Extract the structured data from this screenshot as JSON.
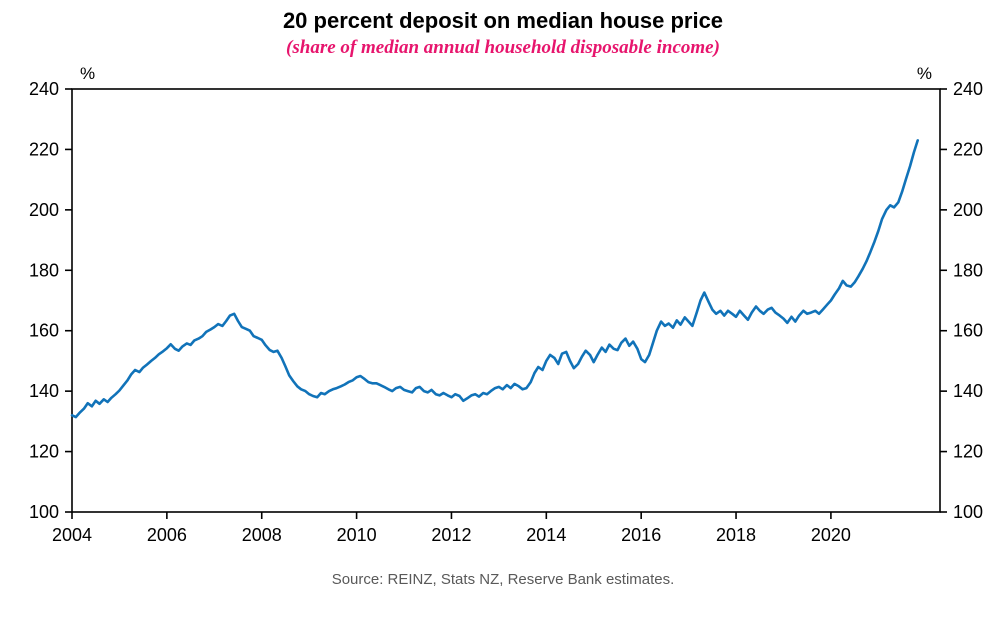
{
  "header": {
    "title": "20 percent deposit on median house price",
    "subtitle": "(share of median annual household disposable income)"
  },
  "footer": {
    "source": "Source: REINZ, Stats NZ, Reserve Bank estimates."
  },
  "chart_data": {
    "type": "line",
    "title": "20 percent deposit on median house price",
    "subtitle": "(share of median annual household disposable income)",
    "axis_unit": "%",
    "xlim": [
      2004,
      2022.3
    ],
    "ylim": [
      100,
      240
    ],
    "y_ticks": [
      100,
      120,
      140,
      160,
      180,
      200,
      220,
      240
    ],
    "x_ticks": [
      2004,
      2006,
      2008,
      2010,
      2012,
      2014,
      2016,
      2018,
      2020
    ],
    "grid": false,
    "legend_position": "none",
    "colors": {
      "line": "#1173b9",
      "subtitle": "#e7156d",
      "axis": "#000000",
      "source_text": "#595959"
    },
    "series": [
      {
        "name": "20 percent deposit as share of median annual household disposable income",
        "points": [
          [
            2004.0,
            132.0
          ],
          [
            2004.08,
            131.4
          ],
          [
            2004.17,
            133.0
          ],
          [
            2004.25,
            134.2
          ],
          [
            2004.33,
            136.0
          ],
          [
            2004.42,
            135.0
          ],
          [
            2004.5,
            136.8
          ],
          [
            2004.58,
            135.8
          ],
          [
            2004.67,
            137.3
          ],
          [
            2004.75,
            136.4
          ],
          [
            2004.83,
            137.8
          ],
          [
            2004.92,
            139.0
          ],
          [
            2005.0,
            140.2
          ],
          [
            2005.08,
            141.8
          ],
          [
            2005.17,
            143.6
          ],
          [
            2005.25,
            145.6
          ],
          [
            2005.33,
            147.0
          ],
          [
            2005.42,
            146.3
          ],
          [
            2005.5,
            147.8
          ],
          [
            2005.58,
            148.8
          ],
          [
            2005.67,
            150.0
          ],
          [
            2005.75,
            151.0
          ],
          [
            2005.83,
            152.2
          ],
          [
            2005.92,
            153.2
          ],
          [
            2006.0,
            154.2
          ],
          [
            2006.08,
            155.5
          ],
          [
            2006.17,
            154.0
          ],
          [
            2006.25,
            153.4
          ],
          [
            2006.33,
            154.8
          ],
          [
            2006.42,
            155.8
          ],
          [
            2006.5,
            155.3
          ],
          [
            2006.58,
            156.8
          ],
          [
            2006.67,
            157.4
          ],
          [
            2006.75,
            158.2
          ],
          [
            2006.83,
            159.6
          ],
          [
            2006.92,
            160.4
          ],
          [
            2007.0,
            161.2
          ],
          [
            2007.08,
            162.2
          ],
          [
            2007.17,
            161.6
          ],
          [
            2007.25,
            163.2
          ],
          [
            2007.33,
            165.0
          ],
          [
            2007.42,
            165.6
          ],
          [
            2007.5,
            163.2
          ],
          [
            2007.58,
            161.2
          ],
          [
            2007.67,
            160.6
          ],
          [
            2007.75,
            160.0
          ],
          [
            2007.83,
            158.2
          ],
          [
            2007.92,
            157.6
          ],
          [
            2008.0,
            157.0
          ],
          [
            2008.08,
            155.2
          ],
          [
            2008.17,
            153.6
          ],
          [
            2008.25,
            153.0
          ],
          [
            2008.33,
            153.4
          ],
          [
            2008.42,
            151.0
          ],
          [
            2008.5,
            148.2
          ],
          [
            2008.58,
            145.2
          ],
          [
            2008.67,
            143.2
          ],
          [
            2008.75,
            141.6
          ],
          [
            2008.83,
            140.6
          ],
          [
            2008.92,
            140.0
          ],
          [
            2009.0,
            139.0
          ],
          [
            2009.08,
            138.4
          ],
          [
            2009.17,
            138.0
          ],
          [
            2009.25,
            139.4
          ],
          [
            2009.33,
            139.0
          ],
          [
            2009.42,
            140.0
          ],
          [
            2009.5,
            140.6
          ],
          [
            2009.58,
            141.0
          ],
          [
            2009.67,
            141.6
          ],
          [
            2009.75,
            142.2
          ],
          [
            2009.83,
            143.0
          ],
          [
            2009.92,
            143.6
          ],
          [
            2010.0,
            144.6
          ],
          [
            2010.08,
            145.0
          ],
          [
            2010.17,
            144.0
          ],
          [
            2010.25,
            143.0
          ],
          [
            2010.33,
            142.6
          ],
          [
            2010.42,
            142.6
          ],
          [
            2010.5,
            142.0
          ],
          [
            2010.58,
            141.4
          ],
          [
            2010.67,
            140.6
          ],
          [
            2010.75,
            140.0
          ],
          [
            2010.83,
            141.0
          ],
          [
            2010.92,
            141.4
          ],
          [
            2011.0,
            140.4
          ],
          [
            2011.08,
            140.0
          ],
          [
            2011.17,
            139.6
          ],
          [
            2011.25,
            141.0
          ],
          [
            2011.33,
            141.4
          ],
          [
            2011.42,
            140.0
          ],
          [
            2011.5,
            139.6
          ],
          [
            2011.58,
            140.4
          ],
          [
            2011.67,
            139.0
          ],
          [
            2011.75,
            138.6
          ],
          [
            2011.83,
            139.4
          ],
          [
            2011.92,
            138.6
          ],
          [
            2012.0,
            138.0
          ],
          [
            2012.08,
            139.0
          ],
          [
            2012.17,
            138.4
          ],
          [
            2012.25,
            136.8
          ],
          [
            2012.33,
            137.6
          ],
          [
            2012.42,
            138.6
          ],
          [
            2012.5,
            139.0
          ],
          [
            2012.58,
            138.2
          ],
          [
            2012.67,
            139.4
          ],
          [
            2012.75,
            139.0
          ],
          [
            2012.83,
            140.0
          ],
          [
            2012.92,
            141.0
          ],
          [
            2013.0,
            141.4
          ],
          [
            2013.08,
            140.6
          ],
          [
            2013.17,
            142.0
          ],
          [
            2013.25,
            141.0
          ],
          [
            2013.33,
            142.4
          ],
          [
            2013.42,
            141.6
          ],
          [
            2013.5,
            140.6
          ],
          [
            2013.58,
            141.0
          ],
          [
            2013.67,
            143.0
          ],
          [
            2013.75,
            146.0
          ],
          [
            2013.83,
            148.0
          ],
          [
            2013.92,
            147.0
          ],
          [
            2014.0,
            150.0
          ],
          [
            2014.08,
            152.0
          ],
          [
            2014.17,
            151.0
          ],
          [
            2014.25,
            149.0
          ],
          [
            2014.33,
            152.4
          ],
          [
            2014.42,
            153.0
          ],
          [
            2014.5,
            150.0
          ],
          [
            2014.58,
            147.6
          ],
          [
            2014.67,
            149.0
          ],
          [
            2014.75,
            151.4
          ],
          [
            2014.83,
            153.4
          ],
          [
            2014.92,
            152.0
          ],
          [
            2015.0,
            149.6
          ],
          [
            2015.08,
            152.0
          ],
          [
            2015.17,
            154.4
          ],
          [
            2015.25,
            153.0
          ],
          [
            2015.33,
            155.4
          ],
          [
            2015.42,
            154.0
          ],
          [
            2015.5,
            153.6
          ],
          [
            2015.58,
            156.0
          ],
          [
            2015.67,
            157.4
          ],
          [
            2015.75,
            155.0
          ],
          [
            2015.83,
            156.4
          ],
          [
            2015.92,
            154.0
          ],
          [
            2016.0,
            150.6
          ],
          [
            2016.08,
            149.6
          ],
          [
            2016.17,
            152.0
          ],
          [
            2016.25,
            156.0
          ],
          [
            2016.33,
            160.0
          ],
          [
            2016.42,
            163.0
          ],
          [
            2016.5,
            161.6
          ],
          [
            2016.58,
            162.4
          ],
          [
            2016.67,
            161.0
          ],
          [
            2016.75,
            163.4
          ],
          [
            2016.83,
            162.0
          ],
          [
            2016.92,
            164.4
          ],
          [
            2017.0,
            163.0
          ],
          [
            2017.08,
            161.6
          ],
          [
            2017.17,
            166.0
          ],
          [
            2017.25,
            170.0
          ],
          [
            2017.33,
            172.6
          ],
          [
            2017.42,
            169.6
          ],
          [
            2017.5,
            167.0
          ],
          [
            2017.58,
            165.6
          ],
          [
            2017.67,
            166.6
          ],
          [
            2017.75,
            165.0
          ],
          [
            2017.83,
            166.6
          ],
          [
            2017.92,
            165.6
          ],
          [
            2018.0,
            164.6
          ],
          [
            2018.08,
            166.6
          ],
          [
            2018.17,
            165.0
          ],
          [
            2018.25,
            163.6
          ],
          [
            2018.33,
            166.0
          ],
          [
            2018.42,
            168.0
          ],
          [
            2018.5,
            166.6
          ],
          [
            2018.58,
            165.6
          ],
          [
            2018.67,
            167.0
          ],
          [
            2018.75,
            167.6
          ],
          [
            2018.83,
            166.0
          ],
          [
            2018.92,
            165.0
          ],
          [
            2019.0,
            164.0
          ],
          [
            2019.08,
            162.6
          ],
          [
            2019.17,
            164.6
          ],
          [
            2019.25,
            163.0
          ],
          [
            2019.33,
            165.0
          ],
          [
            2019.42,
            166.6
          ],
          [
            2019.5,
            165.6
          ],
          [
            2019.58,
            166.0
          ],
          [
            2019.67,
            166.6
          ],
          [
            2019.75,
            165.6
          ],
          [
            2019.83,
            167.0
          ],
          [
            2019.92,
            168.6
          ],
          [
            2020.0,
            170.0
          ],
          [
            2020.08,
            172.0
          ],
          [
            2020.17,
            174.0
          ],
          [
            2020.25,
            176.5
          ],
          [
            2020.33,
            175.0
          ],
          [
            2020.42,
            174.6
          ],
          [
            2020.5,
            176.0
          ],
          [
            2020.58,
            178.0
          ],
          [
            2020.67,
            180.5
          ],
          [
            2020.75,
            183.0
          ],
          [
            2020.83,
            186.0
          ],
          [
            2020.92,
            189.5
          ],
          [
            2021.0,
            193.0
          ],
          [
            2021.08,
            197.0
          ],
          [
            2021.17,
            200.0
          ],
          [
            2021.25,
            201.5
          ],
          [
            2021.33,
            200.8
          ],
          [
            2021.42,
            202.5
          ],
          [
            2021.5,
            206.0
          ],
          [
            2021.58,
            210.0
          ],
          [
            2021.67,
            214.5
          ],
          [
            2021.75,
            219.0
          ],
          [
            2021.83,
            223.0
          ]
        ]
      }
    ]
  }
}
